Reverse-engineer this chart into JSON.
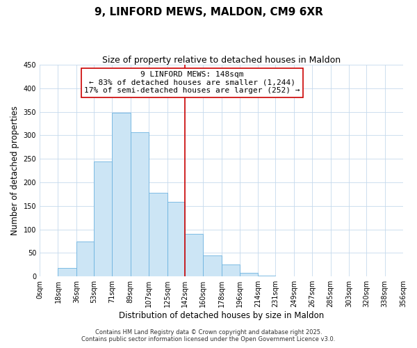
{
  "title": "9, LINFORD MEWS, MALDON, CM9 6XR",
  "subtitle": "Size of property relative to detached houses in Maldon",
  "xlabel": "Distribution of detached houses by size in Maldon",
  "ylabel": "Number of detached properties",
  "bar_color": "#cce5f5",
  "bar_edge_color": "#6db3e0",
  "background_color": "#ffffff",
  "grid_color": "#c5d9ed",
  "bin_edges": [
    0,
    18,
    36,
    53,
    71,
    89,
    107,
    125,
    142,
    160,
    178,
    196,
    214,
    231,
    249,
    267,
    285,
    303,
    320,
    338,
    356
  ],
  "bar_heights": [
    0,
    18,
    75,
    245,
    348,
    307,
    178,
    158,
    91,
    44,
    25,
    8,
    2,
    1,
    1,
    0,
    0,
    0,
    0,
    0
  ],
  "vline_x": 142,
  "vline_color": "#cc0000",
  "annotation_title": "9 LINFORD MEWS: 148sqm",
  "annotation_line1": "← 83% of detached houses are smaller (1,244)",
  "annotation_line2": "17% of semi-detached houses are larger (252) →",
  "annotation_box_color": "#ffffff",
  "annotation_box_edge": "#cc0000",
  "ylim": [
    0,
    450
  ],
  "yticks": [
    0,
    50,
    100,
    150,
    200,
    250,
    300,
    350,
    400,
    450
  ],
  "xtick_labels": [
    "0sqm",
    "18sqm",
    "36sqm",
    "53sqm",
    "71sqm",
    "89sqm",
    "107sqm",
    "125sqm",
    "142sqm",
    "160sqm",
    "178sqm",
    "196sqm",
    "214sqm",
    "231sqm",
    "249sqm",
    "267sqm",
    "285sqm",
    "303sqm",
    "320sqm",
    "338sqm",
    "356sqm"
  ],
  "footnote1": "Contains HM Land Registry data © Crown copyright and database right 2025.",
  "footnote2": "Contains public sector information licensed under the Open Government Licence v3.0.",
  "title_fontsize": 11,
  "subtitle_fontsize": 9,
  "axis_label_fontsize": 8.5,
  "tick_fontsize": 7,
  "annotation_fontsize": 8,
  "footnote_fontsize": 6
}
